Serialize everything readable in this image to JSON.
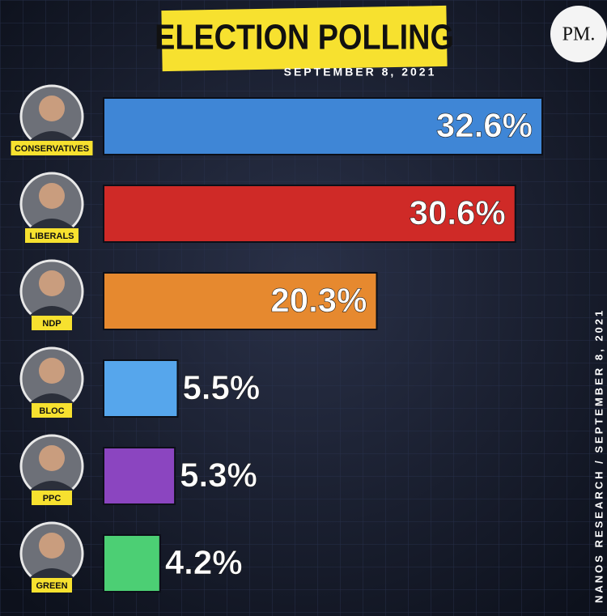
{
  "chart_data": {
    "type": "bar",
    "orientation": "horizontal",
    "title": "ELECTION POLLING",
    "subtitle": "SEPTEMBER 8, 2021",
    "logo": "PM.",
    "source": "NANOS RESEARCH / SEPTEMBER 8, 2021",
    "categories": [
      "CONSERVATIVES",
      "LIBERALS",
      "NDP",
      "BLOC",
      "PPC",
      "GREEN"
    ],
    "values": [
      32.6,
      30.6,
      20.3,
      5.5,
      5.3,
      4.2
    ],
    "value_labels": [
      "32.6%",
      "30.6%",
      "20.3%",
      "5.5%",
      "5.3%",
      "4.2%"
    ],
    "colors": [
      "#3f86d6",
      "#cf2a27",
      "#e6892f",
      "#56a6ec",
      "#8b45c0",
      "#4ccf74"
    ]
  }
}
